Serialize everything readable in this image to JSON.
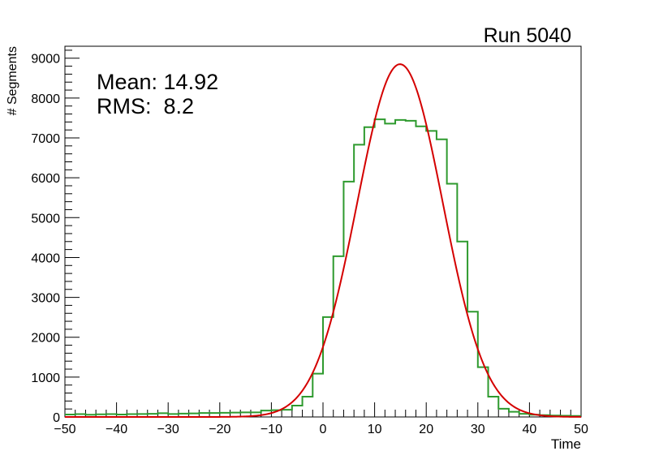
{
  "chart_data": {
    "type": "bar",
    "subtype": "step-histogram-with-fit",
    "title": "Run 5040",
    "xlabel": "Time",
    "ylabel": "# Segments",
    "xlim": [
      -50,
      50
    ],
    "ylim": [
      0,
      9300
    ],
    "xticks": [
      -50,
      -40,
      -30,
      -20,
      -10,
      0,
      10,
      20,
      30,
      40,
      50
    ],
    "yticks": [
      0,
      1000,
      2000,
      3000,
      4000,
      5000,
      6000,
      7000,
      8000,
      9000
    ],
    "stats": {
      "mean_label": "Mean: 14.92",
      "rms_label": "RMS:  8.2"
    },
    "series": [
      {
        "name": "histogram",
        "color": "#2e9a2e",
        "bin_edges_start": -50,
        "bin_width": 2,
        "values": [
          60,
          70,
          55,
          65,
          70,
          60,
          70,
          75,
          80,
          95,
          75,
          85,
          90,
          100,
          100,
          105,
          110,
          115,
          115,
          160,
          170,
          180,
          285,
          510,
          1085,
          2505,
          4032,
          5905,
          6830,
          7270,
          7465,
          7360,
          7450,
          7430,
          7290,
          7175,
          6965,
          5850,
          4400,
          2640,
          1250,
          510,
          205,
          130,
          80,
          55,
          45,
          35,
          30,
          25
        ]
      },
      {
        "name": "gaussian fit",
        "color": "#d40000",
        "amplitude": 8850,
        "mean": 14.92,
        "sigma": 8.3
      }
    ]
  }
}
